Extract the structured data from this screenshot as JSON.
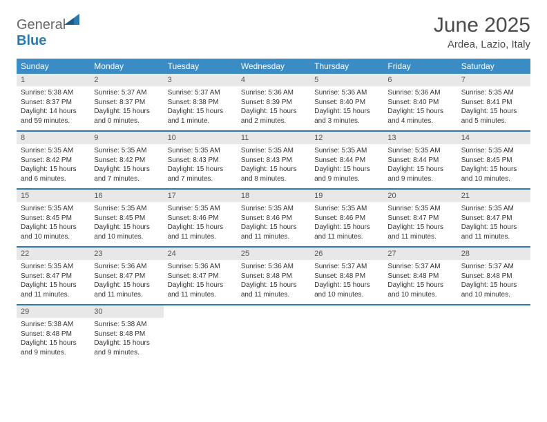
{
  "logo": {
    "textGray": "General",
    "textBlue": "Blue"
  },
  "header": {
    "month": "June 2025",
    "location": "Ardea, Lazio, Italy"
  },
  "colors": {
    "headerBar": "#3b8bc4",
    "weekBorder": "#2a7ab0",
    "dayNumBg": "#e8e8e8",
    "logoBlue": "#2a7ab0",
    "logoGray": "#666666",
    "text": "#333333"
  },
  "dayNames": [
    "Sunday",
    "Monday",
    "Tuesday",
    "Wednesday",
    "Thursday",
    "Friday",
    "Saturday"
  ],
  "weeks": [
    [
      {
        "n": "1",
        "sr": "Sunrise: 5:38 AM",
        "ss": "Sunset: 8:37 PM",
        "dl": "Daylight: 14 hours and 59 minutes."
      },
      {
        "n": "2",
        "sr": "Sunrise: 5:37 AM",
        "ss": "Sunset: 8:37 PM",
        "dl": "Daylight: 15 hours and 0 minutes."
      },
      {
        "n": "3",
        "sr": "Sunrise: 5:37 AM",
        "ss": "Sunset: 8:38 PM",
        "dl": "Daylight: 15 hours and 1 minute."
      },
      {
        "n": "4",
        "sr": "Sunrise: 5:36 AM",
        "ss": "Sunset: 8:39 PM",
        "dl": "Daylight: 15 hours and 2 minutes."
      },
      {
        "n": "5",
        "sr": "Sunrise: 5:36 AM",
        "ss": "Sunset: 8:40 PM",
        "dl": "Daylight: 15 hours and 3 minutes."
      },
      {
        "n": "6",
        "sr": "Sunrise: 5:36 AM",
        "ss": "Sunset: 8:40 PM",
        "dl": "Daylight: 15 hours and 4 minutes."
      },
      {
        "n": "7",
        "sr": "Sunrise: 5:35 AM",
        "ss": "Sunset: 8:41 PM",
        "dl": "Daylight: 15 hours and 5 minutes."
      }
    ],
    [
      {
        "n": "8",
        "sr": "Sunrise: 5:35 AM",
        "ss": "Sunset: 8:42 PM",
        "dl": "Daylight: 15 hours and 6 minutes."
      },
      {
        "n": "9",
        "sr": "Sunrise: 5:35 AM",
        "ss": "Sunset: 8:42 PM",
        "dl": "Daylight: 15 hours and 7 minutes."
      },
      {
        "n": "10",
        "sr": "Sunrise: 5:35 AM",
        "ss": "Sunset: 8:43 PM",
        "dl": "Daylight: 15 hours and 7 minutes."
      },
      {
        "n": "11",
        "sr": "Sunrise: 5:35 AM",
        "ss": "Sunset: 8:43 PM",
        "dl": "Daylight: 15 hours and 8 minutes."
      },
      {
        "n": "12",
        "sr": "Sunrise: 5:35 AM",
        "ss": "Sunset: 8:44 PM",
        "dl": "Daylight: 15 hours and 9 minutes."
      },
      {
        "n": "13",
        "sr": "Sunrise: 5:35 AM",
        "ss": "Sunset: 8:44 PM",
        "dl": "Daylight: 15 hours and 9 minutes."
      },
      {
        "n": "14",
        "sr": "Sunrise: 5:35 AM",
        "ss": "Sunset: 8:45 PM",
        "dl": "Daylight: 15 hours and 10 minutes."
      }
    ],
    [
      {
        "n": "15",
        "sr": "Sunrise: 5:35 AM",
        "ss": "Sunset: 8:45 PM",
        "dl": "Daylight: 15 hours and 10 minutes."
      },
      {
        "n": "16",
        "sr": "Sunrise: 5:35 AM",
        "ss": "Sunset: 8:45 PM",
        "dl": "Daylight: 15 hours and 10 minutes."
      },
      {
        "n": "17",
        "sr": "Sunrise: 5:35 AM",
        "ss": "Sunset: 8:46 PM",
        "dl": "Daylight: 15 hours and 11 minutes."
      },
      {
        "n": "18",
        "sr": "Sunrise: 5:35 AM",
        "ss": "Sunset: 8:46 PM",
        "dl": "Daylight: 15 hours and 11 minutes."
      },
      {
        "n": "19",
        "sr": "Sunrise: 5:35 AM",
        "ss": "Sunset: 8:46 PM",
        "dl": "Daylight: 15 hours and 11 minutes."
      },
      {
        "n": "20",
        "sr": "Sunrise: 5:35 AM",
        "ss": "Sunset: 8:47 PM",
        "dl": "Daylight: 15 hours and 11 minutes."
      },
      {
        "n": "21",
        "sr": "Sunrise: 5:35 AM",
        "ss": "Sunset: 8:47 PM",
        "dl": "Daylight: 15 hours and 11 minutes."
      }
    ],
    [
      {
        "n": "22",
        "sr": "Sunrise: 5:35 AM",
        "ss": "Sunset: 8:47 PM",
        "dl": "Daylight: 15 hours and 11 minutes."
      },
      {
        "n": "23",
        "sr": "Sunrise: 5:36 AM",
        "ss": "Sunset: 8:47 PM",
        "dl": "Daylight: 15 hours and 11 minutes."
      },
      {
        "n": "24",
        "sr": "Sunrise: 5:36 AM",
        "ss": "Sunset: 8:47 PM",
        "dl": "Daylight: 15 hours and 11 minutes."
      },
      {
        "n": "25",
        "sr": "Sunrise: 5:36 AM",
        "ss": "Sunset: 8:48 PM",
        "dl": "Daylight: 15 hours and 11 minutes."
      },
      {
        "n": "26",
        "sr": "Sunrise: 5:37 AM",
        "ss": "Sunset: 8:48 PM",
        "dl": "Daylight: 15 hours and 10 minutes."
      },
      {
        "n": "27",
        "sr": "Sunrise: 5:37 AM",
        "ss": "Sunset: 8:48 PM",
        "dl": "Daylight: 15 hours and 10 minutes."
      },
      {
        "n": "28",
        "sr": "Sunrise: 5:37 AM",
        "ss": "Sunset: 8:48 PM",
        "dl": "Daylight: 15 hours and 10 minutes."
      }
    ],
    [
      {
        "n": "29",
        "sr": "Sunrise: 5:38 AM",
        "ss": "Sunset: 8:48 PM",
        "dl": "Daylight: 15 hours and 9 minutes."
      },
      {
        "n": "30",
        "sr": "Sunrise: 5:38 AM",
        "ss": "Sunset: 8:48 PM",
        "dl": "Daylight: 15 hours and 9 minutes."
      },
      {
        "empty": true
      },
      {
        "empty": true
      },
      {
        "empty": true
      },
      {
        "empty": true
      },
      {
        "empty": true
      }
    ]
  ]
}
